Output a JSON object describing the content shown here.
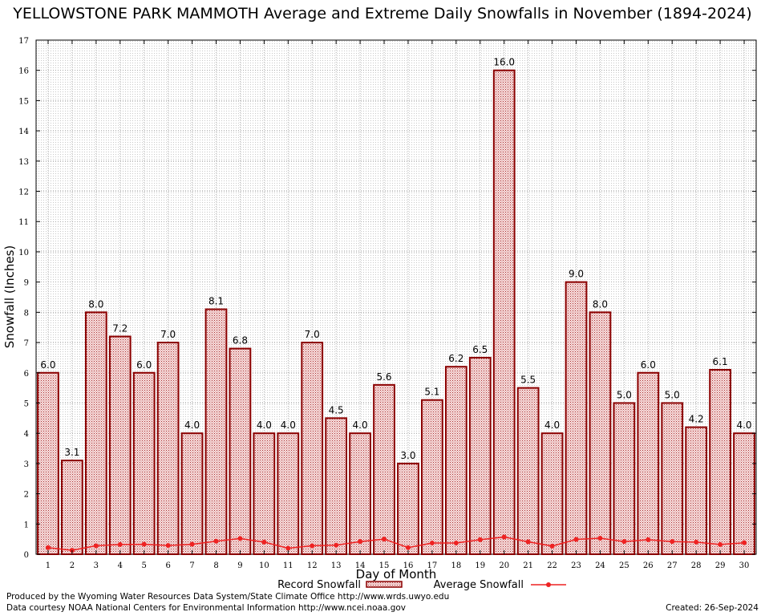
{
  "chart_data": {
    "type": "bar",
    "title": "YELLOWSTONE PARK MAMMOTH Average and Extreme Daily Snowfalls in November (1894-2024)",
    "xlabel": "Day of Month",
    "ylabel": "Snowfall (Inches)",
    "ylim": [
      0,
      17
    ],
    "yticks": [
      "0",
      "1",
      "2",
      "3",
      "4",
      "5",
      "6",
      "7",
      "8",
      "9",
      "10",
      "11",
      "12",
      "13",
      "14",
      "15",
      "16",
      "17"
    ],
    "categories": [
      "1",
      "2",
      "3",
      "4",
      "5",
      "6",
      "7",
      "8",
      "9",
      "10",
      "11",
      "12",
      "13",
      "14",
      "15",
      "16",
      "17",
      "18",
      "19",
      "20",
      "21",
      "22",
      "23",
      "24",
      "25",
      "26",
      "27",
      "28",
      "29",
      "30"
    ],
    "grid": true,
    "legend_position": "bottom-center",
    "series": [
      {
        "name": "Record Snowfall",
        "kind": "bar",
        "color": "#8b0000",
        "values": [
          6.0,
          3.1,
          8.0,
          7.2,
          6.0,
          7.0,
          4.0,
          8.1,
          6.8,
          4.0,
          4.0,
          7.0,
          4.5,
          4.0,
          5.6,
          3.0,
          5.1,
          6.2,
          6.5,
          16.0,
          5.5,
          4.0,
          9.0,
          8.0,
          5.0,
          6.0,
          5.0,
          4.2,
          6.1,
          4.0
        ],
        "labels": [
          "6.0",
          "3.1",
          "8.0",
          "7.2",
          "6.0",
          "7.0",
          "4.0",
          "8.1",
          "6.8",
          "4.0",
          "4.0",
          "7.0",
          "4.5",
          "4.0",
          "5.6",
          "3.0",
          "5.1",
          "6.2",
          "6.5",
          "16.0",
          "5.5",
          "4.0",
          "9.0",
          "8.0",
          "5.0",
          "6.0",
          "5.0",
          "4.2",
          "6.1",
          "4.0"
        ]
      },
      {
        "name": "Average Snowfall",
        "kind": "line",
        "color": "#ee2222",
        "values": [
          0.22,
          0.13,
          0.28,
          0.32,
          0.33,
          0.29,
          0.33,
          0.43,
          0.52,
          0.4,
          0.2,
          0.28,
          0.3,
          0.42,
          0.5,
          0.22,
          0.37,
          0.37,
          0.48,
          0.57,
          0.41,
          0.27,
          0.49,
          0.53,
          0.42,
          0.48,
          0.42,
          0.4,
          0.32,
          0.38
        ]
      }
    ]
  },
  "footer": {
    "produced_by": "Produced by the Wyoming Water Resources Data System/State Climate Office http://www.wrds.uwyo.edu",
    "courtesy": "Data courtesy NOAA National Centers for Environmental Information http://www.ncei.noaa.gov",
    "created": "Created:  26-Sep-2024"
  }
}
